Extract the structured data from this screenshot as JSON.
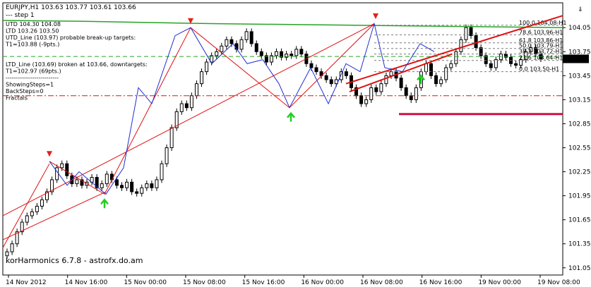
{
  "chart_data": {
    "type": "candlestick",
    "header": {
      "symbol_line": "EURJPY,H1  103.63 103.77 103.61 103.66",
      "step_line": "---  step 1"
    },
    "info_lines": [
      "UTD 104.30  104.08",
      "LTD 103.26  103.50",
      "UTD_Line (103.97) probable break-up targets:",
      "T1=103.88 (-9pts.)",
      "",
      "",
      "LTD_Line (103.69) broken at 103.66, downtargets:",
      "T1=102.97 (69pts.)",
      "--------------------------",
      "ShowingSteps=1",
      "BackSteps=0",
      "Fractals"
    ],
    "footer_text": "korHarmonics 6.7.8 - astrofx.do.am",
    "current_price": "103.66",
    "ylim": [
      100.96,
      104.36
    ],
    "y_ticks": [
      "104.05",
      "103.75",
      "103.45",
      "103.15",
      "102.85",
      "102.55",
      "102.25",
      "101.95",
      "101.65",
      "101.35",
      "101.05"
    ],
    "x_ticks": [
      "14 Nov 2012",
      "14 Nov 16:00",
      "15 Nov 00:00",
      "15 Nov 08:00",
      "15 Nov 16:00",
      "16 Nov 00:00",
      "16 Nov 08:00",
      "16 Nov 16:00",
      "19 Nov 00:00",
      "19 Nov 08:00"
    ],
    "fib_levels": [
      {
        "label": "100.0 104.08-H1",
        "value": 104.08
      },
      {
        "label": "78.6 103.96-H1",
        "value": 103.96
      },
      {
        "label": "61.8 103.86-H1",
        "value": 103.86
      },
      {
        "label": "50.0 103.79-H1",
        "value": 103.79
      },
      {
        "label": "38.2 103.72-H1",
        "value": 103.72
      },
      {
        "label": "23.6 103.64-H1",
        "value": 103.64
      },
      {
        "label": "0.0 103.50-H1",
        "value": 103.5
      }
    ],
    "candles_close": [
      101.25,
      101.35,
      101.5,
      101.62,
      101.7,
      101.75,
      101.82,
      101.9,
      102.0,
      102.15,
      102.3,
      102.35,
      102.2,
      102.1,
      102.15,
      102.08,
      102.12,
      102.18,
      102.05,
      102.1,
      102.22,
      102.15,
      102.08,
      102.05,
      102.12,
      102.0,
      101.98,
      102.05,
      102.1,
      102.05,
      102.15,
      102.35,
      102.55,
      102.8,
      103.0,
      103.1,
      103.05,
      103.2,
      103.35,
      103.5,
      103.62,
      103.7,
      103.75,
      103.82,
      103.9,
      103.85,
      103.78,
      103.9,
      104.0,
      103.85,
      103.75,
      103.7,
      103.62,
      103.7,
      103.75,
      103.68,
      103.72,
      103.7,
      103.78,
      103.72,
      103.6,
      103.55,
      103.5,
      103.45,
      103.4,
      103.35,
      103.4,
      103.5,
      103.45,
      103.3,
      103.2,
      103.1,
      103.15,
      103.3,
      103.25,
      103.35,
      103.45,
      103.5,
      103.42,
      103.3,
      103.2,
      103.15,
      103.3,
      103.5,
      103.6,
      103.45,
      103.35,
      103.4,
      103.55,
      103.6,
      103.75,
      103.9,
      104.05,
      103.95,
      103.8,
      103.7,
      103.6,
      103.55,
      103.65,
      103.72,
      103.68,
      103.6,
      103.58,
      103.65,
      103.75,
      103.8,
      103.72,
      103.66
    ],
    "series": [
      {
        "name": "zigzag"
      },
      {
        "name": "harmonic"
      }
    ]
  },
  "colors": {
    "bg": "#ffffff",
    "grid": "#000000",
    "candle": "#000000",
    "zigzag": "#2030d0",
    "pattern": "#e01010",
    "ma_green": "#27a327",
    "fib": "#7a7a7a",
    "down_arrow": "#e02020",
    "up_arrow": "#20d020",
    "price_box": "#000000"
  }
}
